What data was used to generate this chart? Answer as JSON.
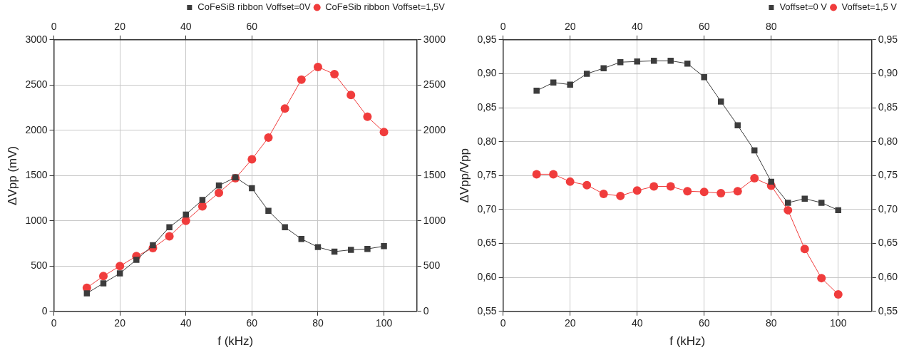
{
  "chart_data": [
    {
      "type": "line",
      "xlabel": "f (kHz)",
      "ylabel": "ΔVpp (mV)",
      "x": [
        10,
        15,
        20,
        25,
        30,
        35,
        40,
        45,
        50,
        55,
        60,
        65,
        70,
        75,
        80,
        85,
        90,
        95,
        100
      ],
      "series": [
        {
          "name": "CoFeSiB ribbon Voffset=0V",
          "color": "#3c3c3c",
          "marker": "square",
          "values": [
            200,
            310,
            420,
            570,
            730,
            930,
            1070,
            1230,
            1390,
            1480,
            1360,
            1110,
            930,
            800,
            710,
            660,
            680,
            690,
            720
          ]
        },
        {
          "name": "CoFeSib ribbon Voffset=1,5V",
          "color": "#f03c3c",
          "marker": "circle",
          "values": [
            260,
            390,
            500,
            610,
            700,
            830,
            1000,
            1160,
            1310,
            1470,
            1680,
            1920,
            2240,
            2560,
            2700,
            2620,
            2390,
            2150,
            1980
          ]
        }
      ],
      "xlim": [
        0,
        110
      ],
      "xticks": [
        0,
        20,
        40,
        60,
        80,
        100
      ],
      "x2lim": [
        0,
        110
      ],
      "x2ticks": [
        0,
        20,
        40,
        60
      ],
      "ylim": [
        0,
        3000
      ],
      "yticks": [
        0,
        500,
        1000,
        1500,
        2000,
        2500,
        3000
      ],
      "y2lim": [
        0,
        3000
      ],
      "y2ticks": [
        0,
        500,
        1000,
        1500,
        2000,
        2500,
        3000
      ],
      "grid": true,
      "legend": "top right",
      "line_style": "solid"
    },
    {
      "type": "line",
      "xlabel": "f (kHz)",
      "ylabel": "ΔVpp/Vpp",
      "x": [
        10,
        15,
        20,
        25,
        30,
        35,
        40,
        45,
        50,
        55,
        60,
        65,
        70,
        75,
        80,
        85,
        90,
        95,
        100
      ],
      "series": [
        {
          "name": "Voffset=0 V",
          "color": "#3c3c3c",
          "marker": "square",
          "values": [
            0.875,
            0.887,
            0.884,
            0.9,
            0.908,
            0.917,
            0.918,
            0.919,
            0.919,
            0.915,
            0.895,
            0.859,
            0.824,
            0.787,
            0.741,
            0.71,
            0.716,
            0.71,
            0.699
          ]
        },
        {
          "name": "Voffset=1,5 V",
          "color": "#f03c3c",
          "marker": "circle",
          "values": [
            0.752,
            0.752,
            0.741,
            0.736,
            0.723,
            0.72,
            0.728,
            0.734,
            0.734,
            0.727,
            0.726,
            0.724,
            0.727,
            0.746,
            0.735,
            0.699,
            0.642,
            0.599,
            0.575
          ]
        }
      ],
      "xlim": [
        0,
        110
      ],
      "xticks": [
        0,
        20,
        40,
        60,
        80,
        100
      ],
      "x2lim": [
        0,
        110
      ],
      "x2ticks": [
        0,
        20,
        40,
        60,
        80
      ],
      "ylim": [
        0.55,
        0.95
      ],
      "yticks": [
        {
          "value": 0.55,
          "label": "0,55"
        },
        {
          "value": 0.6,
          "label": "0,60"
        },
        {
          "value": 0.65,
          "label": "0,65"
        },
        {
          "value": 0.7,
          "label": "0,70"
        },
        {
          "value": 0.75,
          "label": "0,75"
        },
        {
          "value": 0.8,
          "label": "0,80"
        },
        {
          "value": 0.85,
          "label": "0,85"
        },
        {
          "value": 0.9,
          "label": "0,90"
        },
        {
          "value": 0.95,
          "label": "0,95"
        }
      ],
      "y2lim": [
        0.55,
        0.95
      ],
      "y2ticks": [
        {
          "value": 0.55,
          "label": "0,55"
        },
        {
          "value": 0.6,
          "label": "0,60"
        },
        {
          "value": 0.65,
          "label": "0,65"
        },
        {
          "value": 0.7,
          "label": "0,70"
        },
        {
          "value": 0.75,
          "label": "0,75"
        },
        {
          "value": 0.8,
          "label": "0,80"
        },
        {
          "value": 0.85,
          "label": "0,85"
        },
        {
          "value": 0.9,
          "label": "0,90"
        },
        {
          "value": 0.95,
          "label": "0,95"
        }
      ],
      "grid": true,
      "legend": "top right",
      "line_style": "solid"
    }
  ]
}
